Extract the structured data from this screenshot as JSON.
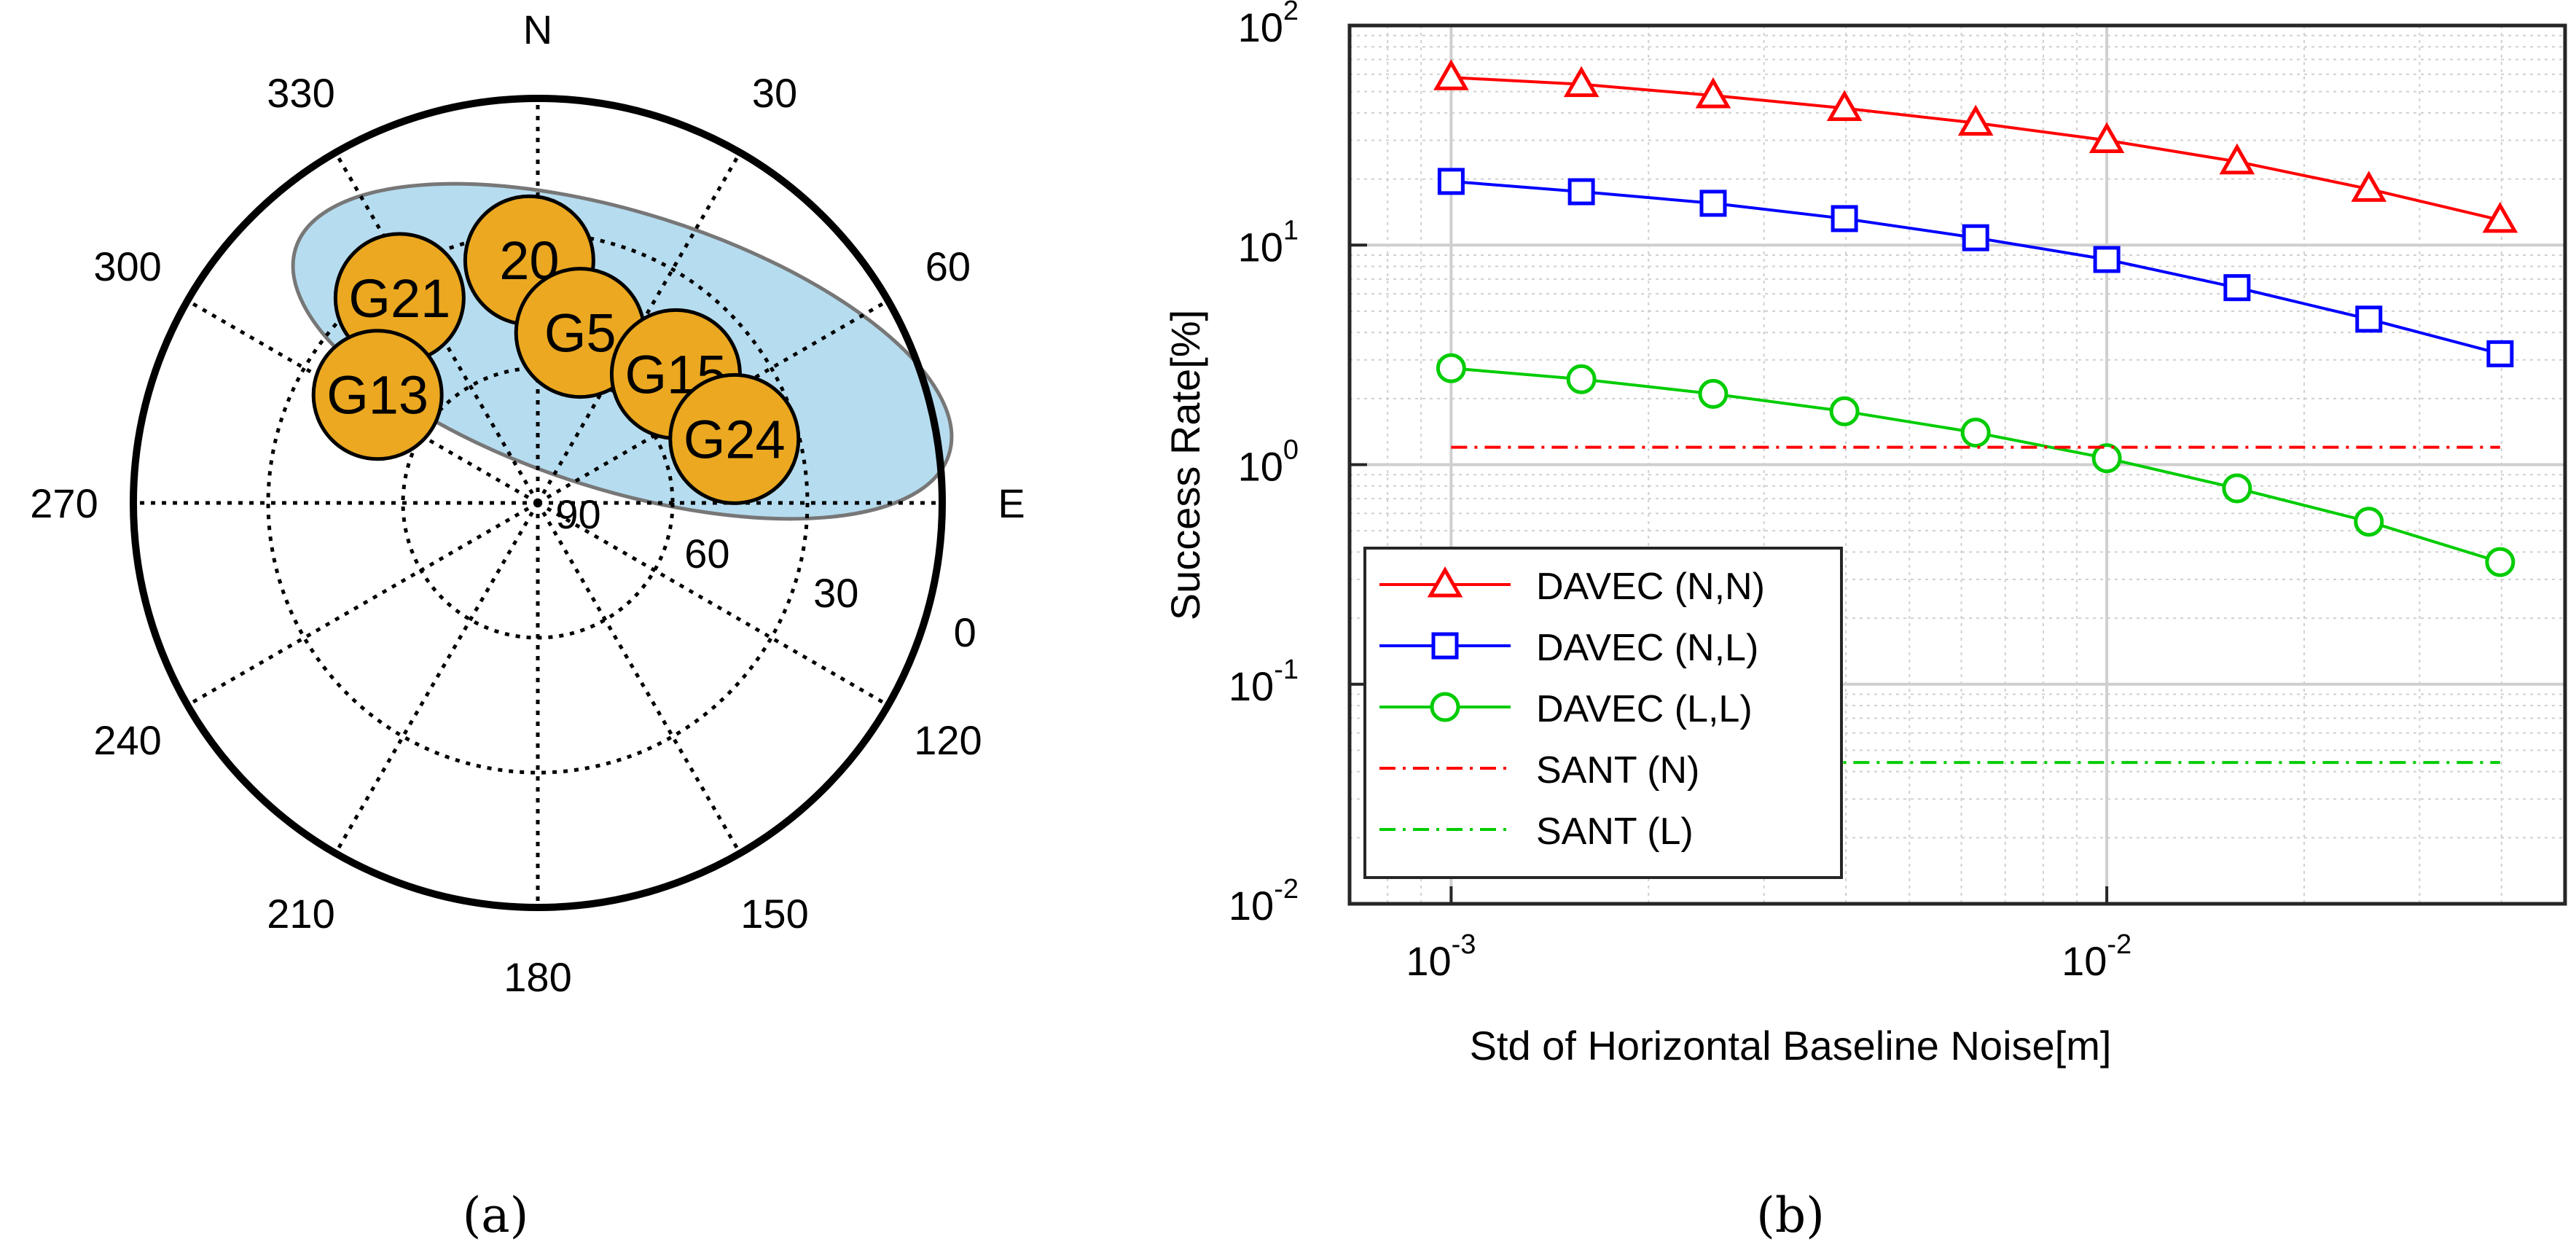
{
  "chart_data": [
    {
      "type": "polar-skyplot",
      "caption": "(a)",
      "direction_labels": {
        "north": "N",
        "east": "E"
      },
      "azimuth_ticks": [
        {
          "az": 0,
          "label": "N"
        },
        {
          "az": 30,
          "label": "30"
        },
        {
          "az": 60,
          "label": "60"
        },
        {
          "az": 90,
          "label": "E"
        },
        {
          "az": 120,
          "label": "120"
        },
        {
          "az": 150,
          "label": "150"
        },
        {
          "az": 180,
          "label": "180"
        },
        {
          "az": 210,
          "label": "210"
        },
        {
          "az": 240,
          "label": "240"
        },
        {
          "az": 270,
          "label": "270"
        },
        {
          "az": 300,
          "label": "300"
        },
        {
          "az": 330,
          "label": "330"
        }
      ],
      "elevation_rings": [
        90,
        60,
        30,
        0
      ],
      "elevation_labels": [
        "90",
        "60",
        "30",
        "0"
      ],
      "satellites": [
        {
          "id": "G21",
          "label": "G21",
          "az": 326,
          "el": 35
        },
        {
          "id": "G20",
          "label": "20",
          "az": 358,
          "el": 36
        },
        {
          "id": "G13",
          "label": "G13",
          "az": 304,
          "el": 47
        },
        {
          "id": "G5",
          "label": "G5",
          "az": 14,
          "el": 51
        },
        {
          "id": "G15",
          "label": "G15",
          "az": 47,
          "el": 48
        },
        {
          "id": "G24",
          "label": "G24",
          "az": 72,
          "el": 44
        }
      ],
      "satellite_color": "#eba820",
      "highlight_region_color": "#b6dcef"
    },
    {
      "type": "line",
      "caption": "(b)",
      "xscale": "log",
      "yscale": "log",
      "xlabel": "Std of Horizontal Baseline Noise[m]",
      "ylabel": "Success Rate[%]",
      "xlim": [
        0.0007,
        0.05
      ],
      "ylim": [
        0.01,
        100
      ],
      "xticks": [
        {
          "value": 0.001,
          "base": "10",
          "exp": "-3"
        },
        {
          "value": 0.01,
          "base": "10",
          "exp": "-2"
        }
      ],
      "yticks": [
        {
          "value": 0.01,
          "base": "10",
          "exp": "-2"
        },
        {
          "value": 0.1,
          "base": "10",
          "exp": "-1"
        },
        {
          "value": 1,
          "base": "10",
          "exp": "0"
        },
        {
          "value": 10,
          "base": "10",
          "exp": "1"
        },
        {
          "value": 100,
          "base": "10",
          "exp": "2"
        }
      ],
      "grid": true,
      "legend_position": "bottom-left",
      "x": [
        0.001,
        0.00158,
        0.00251,
        0.00398,
        0.00631,
        0.01,
        0.0158,
        0.0251,
        0.0398
      ],
      "series": [
        {
          "name": "DAVEC (N,N)",
          "color": "#ff0000",
          "marker": "triangle",
          "dash": "solid",
          "values": [
            58,
            54,
            48,
            42,
            36,
            30,
            24,
            18,
            13
          ]
        },
        {
          "name": "DAVEC (N,L)",
          "color": "#0000ff",
          "marker": "square",
          "dash": "solid",
          "values": [
            19.5,
            17.5,
            15.5,
            13.2,
            10.8,
            8.6,
            6.4,
            4.6,
            3.2
          ]
        },
        {
          "name": "DAVEC (L,L)",
          "color": "#00cc00",
          "marker": "circle",
          "dash": "solid",
          "values": [
            2.75,
            2.45,
            2.1,
            1.75,
            1.4,
            1.07,
            0.78,
            0.55,
            0.36
          ]
        },
        {
          "name": "SANT (N)",
          "color": "#ff0000",
          "marker": "none",
          "dash": "dashdot",
          "const": 1.2
        },
        {
          "name": "SANT (L)",
          "color": "#00cc00",
          "marker": "none",
          "dash": "dashdot",
          "const": 0.044
        }
      ]
    }
  ]
}
